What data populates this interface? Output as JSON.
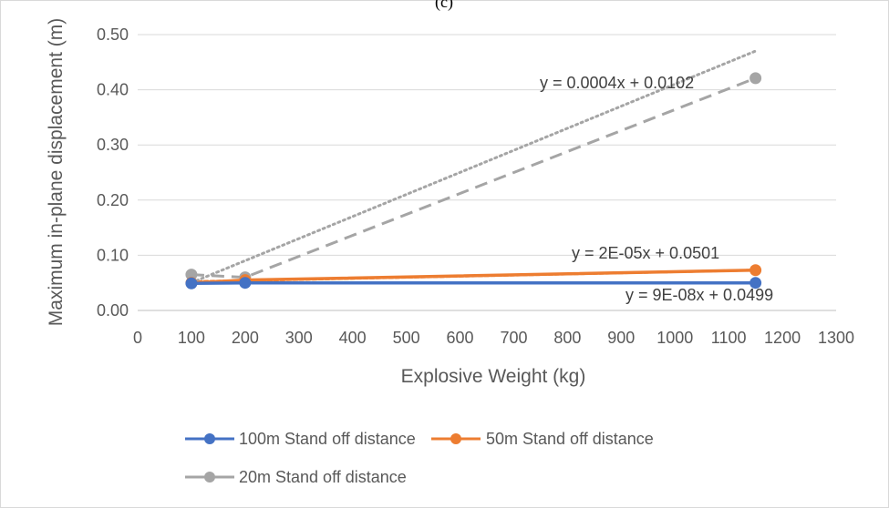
{
  "chart_data": {
    "type": "line",
    "title": "(c)",
    "xlabel": "Explosive Weight (kg)",
    "ylabel": "Maximum in-plane displacement (m)",
    "xlim": [
      0,
      1300
    ],
    "ylim": [
      0,
      0.5
    ],
    "x_ticks": [
      "0",
      "100",
      "200",
      "300",
      "400",
      "500",
      "600",
      "700",
      "800",
      "900",
      "1000",
      "1100",
      "1200",
      "1300"
    ],
    "y_ticks": [
      "0.00",
      "0.10",
      "0.20",
      "0.30",
      "0.40",
      "0.50"
    ],
    "grid": true,
    "legend_position": "bottom",
    "series": [
      {
        "name": "100m Stand off distance",
        "color": "#4472C4",
        "x": [
          100,
          200,
          1150
        ],
        "y": [
          0.049,
          0.05,
          0.05
        ]
      },
      {
        "name": "50m Stand off distance",
        "color": "#ED7D31",
        "x": [
          100,
          200,
          1150
        ],
        "y": [
          0.05,
          0.055,
          0.073
        ]
      },
      {
        "name": "20m Stand off distance",
        "color": "#A5A5A5",
        "x": [
          100,
          200,
          1150
        ],
        "y": [
          0.065,
          0.06,
          0.421
        ]
      }
    ],
    "trendlines": [
      {
        "series": 0,
        "equation": "y = 9E-08x + 0.0499",
        "slope": 9e-08,
        "intercept": 0.0499
      },
      {
        "series": 1,
        "equation": "y = 2E-05x + 0.0501",
        "slope": 2e-05,
        "intercept": 0.0501
      },
      {
        "series": 2,
        "equation": "y = 0.0004x + 0.0102",
        "slope": 0.0004,
        "intercept": 0.0102
      }
    ]
  }
}
